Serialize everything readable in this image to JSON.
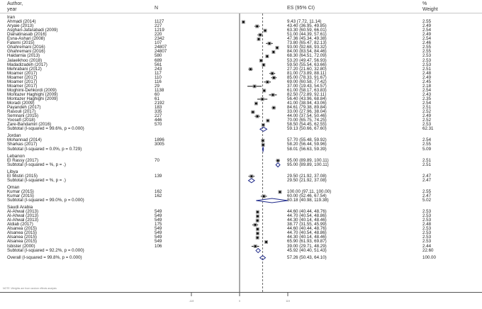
{
  "header": {
    "study_label_1": "Author,",
    "study_label_2": "year",
    "n_label": "N",
    "es_label": "ES (95% CI)",
    "weight_label_1": "%",
    "weight_label_2": "Weight"
  },
  "footnote": "NOTE: Weights are from random effects analysis",
  "axis": {
    "ticks": [
      "-119",
      "0",
      "119"
    ]
  },
  "rows": [
    {
      "type": "group",
      "label": "Iran"
    },
    {
      "type": "study",
      "study": "Ahmadi (2014)",
      "n": "1127",
      "es": "9.43 (7.72, 11.14)",
      "weight": "2.55"
    },
    {
      "type": "study",
      "study": "Aryaie (2013)",
      "n": "227",
      "es": "43.40 (36.95, 49.85)",
      "weight": "2.49"
    },
    {
      "type": "study",
      "study": "Asghari-Jafarabadi (2009)",
      "n": "1219",
      "es": "63.30 (60.59, 66.01)",
      "weight": "2.54"
    },
    {
      "type": "study",
      "study": "Dianatinasab (2016)",
      "n": "220",
      "es": "51.00 (44.39, 57.61)",
      "weight": "2.49"
    },
    {
      "type": "study",
      "study": "Esna-Ashari (2008)",
      "n": "2342",
      "es": "47.36 (45.34, 49.38)",
      "weight": "2.54"
    },
    {
      "type": "study",
      "study": "Fatemi (2015)",
      "n": "107",
      "es": "73.80 (65.47, 82.13)",
      "weight": "2.46"
    },
    {
      "type": "study",
      "study": "Ghahremani (2016)",
      "n": "24807",
      "es": "93.00 (92.68, 93.32)",
      "weight": "2.55"
    },
    {
      "type": "study",
      "study": "Ghahremani (2016)",
      "n": "24807",
      "es": "84.00 (83.54, 84.46)",
      "weight": "2.55"
    },
    {
      "type": "study",
      "study": "Haidarnia (2013)",
      "n": "580",
      "es": "68.30 (64.51, 72.09)",
      "weight": "2.53"
    },
    {
      "type": "study",
      "study": "Jalaeikhoo (2018)",
      "n": "689",
      "es": "53.20 (49.47, 56.93)",
      "weight": "2.53"
    },
    {
      "type": "study",
      "study": "Madadizadeh (2017)",
      "n": "561",
      "es": "59.50 (55.54, 63.66)",
      "weight": "2.53"
    },
    {
      "type": "study",
      "study": "Mehrabani (2012)",
      "n": "243",
      "es": "27.20 (21.60, 32.80)",
      "weight": "2.51"
    },
    {
      "type": "study",
      "study": "Moamer (2017)",
      "n": "117",
      "es": "81.00 (73.89, 88.11)",
      "weight": "2.48"
    },
    {
      "type": "study",
      "study": "Moamer (2017)",
      "n": "110",
      "es": "85.00 (78.33, 91.67)",
      "weight": "2.49"
    },
    {
      "type": "study",
      "study": "Moamer (2017)",
      "n": "116",
      "es": "69.00 (60.58, 77.42)",
      "weight": "2.45"
    },
    {
      "type": "study",
      "study": "Moamer (2017)",
      "n": "29",
      "es": "37.00 (19.43, 54.57)",
      "weight": "2.18"
    },
    {
      "type": "study",
      "study": "Moghimi-Dehkordi (2009)",
      "n": "1138",
      "es": "61.00 (58.17, 63.83)",
      "weight": "2.54"
    },
    {
      "type": "study",
      "study": "Montazer Haghighi (2009)",
      "n": "60",
      "es": "82.50 (72.89, 92.11)",
      "weight": "2.43"
    },
    {
      "type": "study",
      "study": "Montazer Haghighi (2009)",
      "n": "61",
      "es": "56.40 (43.96, 68.84)",
      "weight": "2.35"
    },
    {
      "type": "study",
      "study": "Moradi (2009)",
      "n": "2192",
      "es": "41.00 (38.94, 43.06)",
      "weight": "2.54"
    },
    {
      "type": "study",
      "study": "Payandeh (2017)",
      "n": "183",
      "es": "84.61 (79.38, 89.84)",
      "weight": "2.51"
    },
    {
      "type": "study",
      "study": "Rasouli (2017)",
      "n": "335",
      "es": "33.00 (27.96, 38.04)",
      "weight": "2.52"
    },
    {
      "type": "study",
      "study": "Semnani (2015)",
      "n": "227",
      "es": "44.00 (37.54, 50.46)",
      "weight": "2.49"
    },
    {
      "type": "study",
      "study": "Yoosefi (2018)",
      "n": "446",
      "es": "70.00 (65.75, 74.25)",
      "weight": "2.52"
    },
    {
      "type": "study",
      "study": "Zare-Bandamiri (2016)",
      "n": "570",
      "es": "58.50 (54.45, 62.55)",
      "weight": "2.53"
    },
    {
      "type": "subtotal",
      "study": "Subtotal  (I-squared = 99.6%, p = 0.000)",
      "n": "",
      "es": "59.13 (50.66, 67.60)",
      "weight": "62.31"
    },
    {
      "type": "gap"
    },
    {
      "type": "group",
      "label": "Jordan"
    },
    {
      "type": "study",
      "study": "Mohannad (2014)",
      "n": "1896",
      "es": "57.70 (55.48, 59.92)",
      "weight": "2.54"
    },
    {
      "type": "study",
      "study": "Sharkas (2017)",
      "n": "3005",
      "es": "58.20 (56.44, 59.96)",
      "weight": "2.55"
    },
    {
      "type": "subtotal",
      "study": "Subtotal  (I-squared = 0.0%, p = 0.729)",
      "n": "",
      "es": "58.01 (56.63, 59.39)",
      "weight": "5.09"
    },
    {
      "type": "gap"
    },
    {
      "type": "group",
      "label": "Lebanon"
    },
    {
      "type": "study",
      "study": "El Rassy (2017)",
      "n": "70",
      "es": "95.00 (89.89, 100.11)",
      "weight": "2.51"
    },
    {
      "type": "subtotal",
      "study": "Subtotal  (I-squared =  %, p =  .)",
      "n": "",
      "es": "95.00 (89.89, 100.11)",
      "weight": "2.51"
    },
    {
      "type": "gap"
    },
    {
      "type": "group",
      "label": "Libya"
    },
    {
      "type": "study",
      "study": "El Mistiri (2015)",
      "n": "139",
      "es": "29.50 (21.92, 37.08)",
      "weight": "2.47"
    },
    {
      "type": "subtotal",
      "study": "Subtotal  (I-squared =  %, p =  .)",
      "n": "",
      "es": "29.50 (21.92, 37.08)",
      "weight": "2.47"
    },
    {
      "type": "gap"
    },
    {
      "type": "group",
      "label": "Oman"
    },
    {
      "type": "study",
      "study": "Kumar (2015)",
      "n": "162",
      "es": "100.00 (97.11, 100.00)",
      "weight": "2.55"
    },
    {
      "type": "study",
      "study": "Kumar (2015)",
      "n": "162",
      "es": "60.00 (52.46, 67.54)",
      "weight": "2.47"
    },
    {
      "type": "subtotal",
      "study": "Subtotal  (I-squared = 99.0%, p = 0.000)",
      "n": "",
      "es": "80.18 (40.98, 119.38)",
      "weight": "5.02"
    },
    {
      "type": "gap"
    },
    {
      "type": "group",
      "label": "Saudi Arabia"
    },
    {
      "type": "study",
      "study": "Al-Ahwal (2013)",
      "n": "549",
      "es": "44.60 (40.44, 48.76)",
      "weight": "2.53"
    },
    {
      "type": "study",
      "study": "Al-Ahwal (2013)",
      "n": "549",
      "es": "44.70 (40.54, 48.86)",
      "weight": "2.53"
    },
    {
      "type": "study",
      "study": "Al-Ahwal (2013)",
      "n": "549",
      "es": "44.30 (40.14, 48.46)",
      "weight": "2.53"
    },
    {
      "type": "study",
      "study": "Aldiab (2017)",
      "n": "175",
      "es": "38.77 (31.55, 45.99)",
      "weight": "2.48"
    },
    {
      "type": "study",
      "study": "Alsanea (2015)",
      "n": "549",
      "es": "44.60 (40.44, 48.76)",
      "weight": "2.53"
    },
    {
      "type": "study",
      "study": "Alsanea (2015)",
      "n": "549",
      "es": "44.70 (40.54, 48.86)",
      "weight": "2.53"
    },
    {
      "type": "study",
      "study": "Alsanea (2015)",
      "n": "549",
      "es": "44.30 (40.14, 48.46)",
      "weight": "2.53"
    },
    {
      "type": "study",
      "study": "Alsanea (2015)",
      "n": "549",
      "es": "65.90 (61.93, 69.87)",
      "weight": "2.53"
    },
    {
      "type": "study",
      "study": "Isbister (2000)",
      "n": "106",
      "es": "39.00 (29.71, 48.29)",
      "weight": "2.44"
    },
    {
      "type": "subtotal",
      "study": "Subtotal  (I-squared = 92.2%, p = 0.000)",
      "n": "",
      "es": "45.92 (40.40, 51.43)",
      "weight": "22.60"
    },
    {
      "type": "gap"
    },
    {
      "type": "overall",
      "study": "Overall  (I-squared = 99.8%, p = 0.000)",
      "n": "",
      "es": "57.26 (50.43, 64.10)",
      "weight": "100.00"
    }
  ],
  "chart_data": {
    "type": "forest",
    "title": "",
    "xlabel": "",
    "ylabel": "",
    "x_ticks": [
      -119.38,
      0,
      119.38
    ],
    "xlim": [
      -119.38,
      119.38
    ],
    "null_line": 0,
    "overall_line": 57.26,
    "columns": [
      "Author, year",
      "N",
      "ES (95% CI)",
      "% Weight"
    ],
    "groups": [
      {
        "name": "Iran",
        "studies": [
          {
            "study": "Ahmadi (2014)",
            "n": 1127,
            "es": 9.43,
            "lo": 7.72,
            "hi": 11.14,
            "weight": 2.55
          },
          {
            "study": "Aryaie (2013)",
            "n": 227,
            "es": 43.4,
            "lo": 36.95,
            "hi": 49.85,
            "weight": 2.49
          },
          {
            "study": "Asghari-Jafarabadi (2009)",
            "n": 1219,
            "es": 63.3,
            "lo": 60.59,
            "hi": 66.01,
            "weight": 2.54
          },
          {
            "study": "Dianatinasab (2016)",
            "n": 220,
            "es": 51.0,
            "lo": 44.39,
            "hi": 57.61,
            "weight": 2.49
          },
          {
            "study": "Esna-Ashari (2008)",
            "n": 2342,
            "es": 47.36,
            "lo": 45.34,
            "hi": 49.38,
            "weight": 2.54
          },
          {
            "study": "Fatemi (2015)",
            "n": 107,
            "es": 73.8,
            "lo": 65.47,
            "hi": 82.13,
            "weight": 2.46
          },
          {
            "study": "Ghahremani (2016)",
            "n": 24807,
            "es": 93.0,
            "lo": 92.68,
            "hi": 93.32,
            "weight": 2.55
          },
          {
            "study": "Ghahremani (2016)",
            "n": 24807,
            "es": 84.0,
            "lo": 83.54,
            "hi": 84.46,
            "weight": 2.55
          },
          {
            "study": "Haidarnia (2013)",
            "n": 580,
            "es": 68.3,
            "lo": 64.51,
            "hi": 72.09,
            "weight": 2.53
          },
          {
            "study": "Jalaeikhoo (2018)",
            "n": 689,
            "es": 53.2,
            "lo": 49.47,
            "hi": 56.93,
            "weight": 2.53
          },
          {
            "study": "Madadizadeh (2017)",
            "n": 561,
            "es": 59.5,
            "lo": 55.54,
            "hi": 63.66,
            "weight": 2.53
          },
          {
            "study": "Mehrabani (2012)",
            "n": 243,
            "es": 27.2,
            "lo": 21.6,
            "hi": 32.8,
            "weight": 2.51
          },
          {
            "study": "Moamer (2017)",
            "n": 117,
            "es": 81.0,
            "lo": 73.89,
            "hi": 88.11,
            "weight": 2.48
          },
          {
            "study": "Moamer (2017)",
            "n": 110,
            "es": 85.0,
            "lo": 78.33,
            "hi": 91.67,
            "weight": 2.49
          },
          {
            "study": "Moamer (2017)",
            "n": 116,
            "es": 69.0,
            "lo": 60.58,
            "hi": 77.42,
            "weight": 2.45
          },
          {
            "study": "Moamer (2017)",
            "n": 29,
            "es": 37.0,
            "lo": 19.43,
            "hi": 54.57,
            "weight": 2.18
          },
          {
            "study": "Moghimi-Dehkordi (2009)",
            "n": 1138,
            "es": 61.0,
            "lo": 58.17,
            "hi": 63.83,
            "weight": 2.54
          },
          {
            "study": "Montazer Haghighi (2009)",
            "n": 60,
            "es": 82.5,
            "lo": 72.89,
            "hi": 92.11,
            "weight": 2.43
          },
          {
            "study": "Montazer Haghighi (2009)",
            "n": 61,
            "es": 56.4,
            "lo": 43.96,
            "hi": 68.84,
            "weight": 2.35
          },
          {
            "study": "Moradi (2009)",
            "n": 2192,
            "es": 41.0,
            "lo": 38.94,
            "hi": 43.06,
            "weight": 2.54
          },
          {
            "study": "Payandeh (2017)",
            "n": 183,
            "es": 84.61,
            "lo": 79.38,
            "hi": 89.84,
            "weight": 2.51
          },
          {
            "study": "Rasouli (2017)",
            "n": 335,
            "es": 33.0,
            "lo": 27.96,
            "hi": 38.04,
            "weight": 2.52
          },
          {
            "study": "Semnani (2015)",
            "n": 227,
            "es": 44.0,
            "lo": 37.54,
            "hi": 50.46,
            "weight": 2.49
          },
          {
            "study": "Yoosefi (2018)",
            "n": 446,
            "es": 70.0,
            "lo": 65.75,
            "hi": 74.25,
            "weight": 2.52
          },
          {
            "study": "Zare-Bandamiri (2016)",
            "n": 570,
            "es": 58.5,
            "lo": 54.45,
            "hi": 62.55,
            "weight": 2.53
          }
        ],
        "subtotal": {
          "i2": "99.6%",
          "p": "0.000",
          "es": 59.13,
          "lo": 50.66,
          "hi": 67.6,
          "weight": 62.31
        }
      },
      {
        "name": "Jordan",
        "studies": [
          {
            "study": "Mohannad (2014)",
            "n": 1896,
            "es": 57.7,
            "lo": 55.48,
            "hi": 59.92,
            "weight": 2.54
          },
          {
            "study": "Sharkas (2017)",
            "n": 3005,
            "es": 58.2,
            "lo": 56.44,
            "hi": 59.96,
            "weight": 2.55
          }
        ],
        "subtotal": {
          "i2": "0.0%",
          "p": "0.729",
          "es": 58.01,
          "lo": 56.63,
          "hi": 59.39,
          "weight": 5.09
        }
      },
      {
        "name": "Lebanon",
        "studies": [
          {
            "study": "El Rassy (2017)",
            "n": 70,
            "es": 95.0,
            "lo": 89.89,
            "hi": 100.11,
            "weight": 2.51
          }
        ],
        "subtotal": {
          "i2": "",
          "p": "",
          "es": 95.0,
          "lo": 89.89,
          "hi": 100.11,
          "weight": 2.51
        }
      },
      {
        "name": "Libya",
        "studies": [
          {
            "study": "El Mistiri (2015)",
            "n": 139,
            "es": 29.5,
            "lo": 21.92,
            "hi": 37.08,
            "weight": 2.47
          }
        ],
        "subtotal": {
          "i2": "",
          "p": "",
          "es": 29.5,
          "lo": 21.92,
          "hi": 37.08,
          "weight": 2.47
        }
      },
      {
        "name": "Oman",
        "studies": [
          {
            "study": "Kumar (2015)",
            "n": 162,
            "es": 100.0,
            "lo": 97.11,
            "hi": 100.0,
            "weight": 2.55
          },
          {
            "study": "Kumar (2015)",
            "n": 162,
            "es": 60.0,
            "lo": 52.46,
            "hi": 67.54,
            "weight": 2.47
          }
        ],
        "subtotal": {
          "i2": "99.0%",
          "p": "0.000",
          "es": 80.18,
          "lo": 40.98,
          "hi": 119.38,
          "weight": 5.02
        }
      },
      {
        "name": "Saudi Arabia",
        "studies": [
          {
            "study": "Al-Ahwal (2013)",
            "n": 549,
            "es": 44.6,
            "lo": 40.44,
            "hi": 48.76,
            "weight": 2.53
          },
          {
            "study": "Al-Ahwal (2013)",
            "n": 549,
            "es": 44.7,
            "lo": 40.54,
            "hi": 48.86,
            "weight": 2.53
          },
          {
            "study": "Al-Ahwal (2013)",
            "n": 549,
            "es": 44.3,
            "lo": 40.14,
            "hi": 48.46,
            "weight": 2.53
          },
          {
            "study": "Aldiab (2017)",
            "n": 175,
            "es": 38.77,
            "lo": 31.55,
            "hi": 45.99,
            "weight": 2.48
          },
          {
            "study": "Alsanea (2015)",
            "n": 549,
            "es": 44.6,
            "lo": 40.44,
            "hi": 48.76,
            "weight": 2.53
          },
          {
            "study": "Alsanea (2015)",
            "n": 549,
            "es": 44.7,
            "lo": 40.54,
            "hi": 48.86,
            "weight": 2.53
          },
          {
            "study": "Alsanea (2015)",
            "n": 549,
            "es": 44.3,
            "lo": 40.14,
            "hi": 48.46,
            "weight": 2.53
          },
          {
            "study": "Alsanea (2015)",
            "n": 549,
            "es": 65.9,
            "lo": 61.93,
            "hi": 69.87,
            "weight": 2.53
          },
          {
            "study": "Isbister (2000)",
            "n": 106,
            "es": 39.0,
            "lo": 29.71,
            "hi": 48.29,
            "weight": 2.44
          }
        ],
        "subtotal": {
          "i2": "92.2%",
          "p": "0.000",
          "es": 45.92,
          "lo": 40.4,
          "hi": 51.43,
          "weight": 22.6
        }
      }
    ],
    "overall": {
      "i2": "99.8%",
      "p": "0.000",
      "es": 57.26,
      "lo": 50.43,
      "hi": 64.1,
      "weight": 100.0
    }
  }
}
